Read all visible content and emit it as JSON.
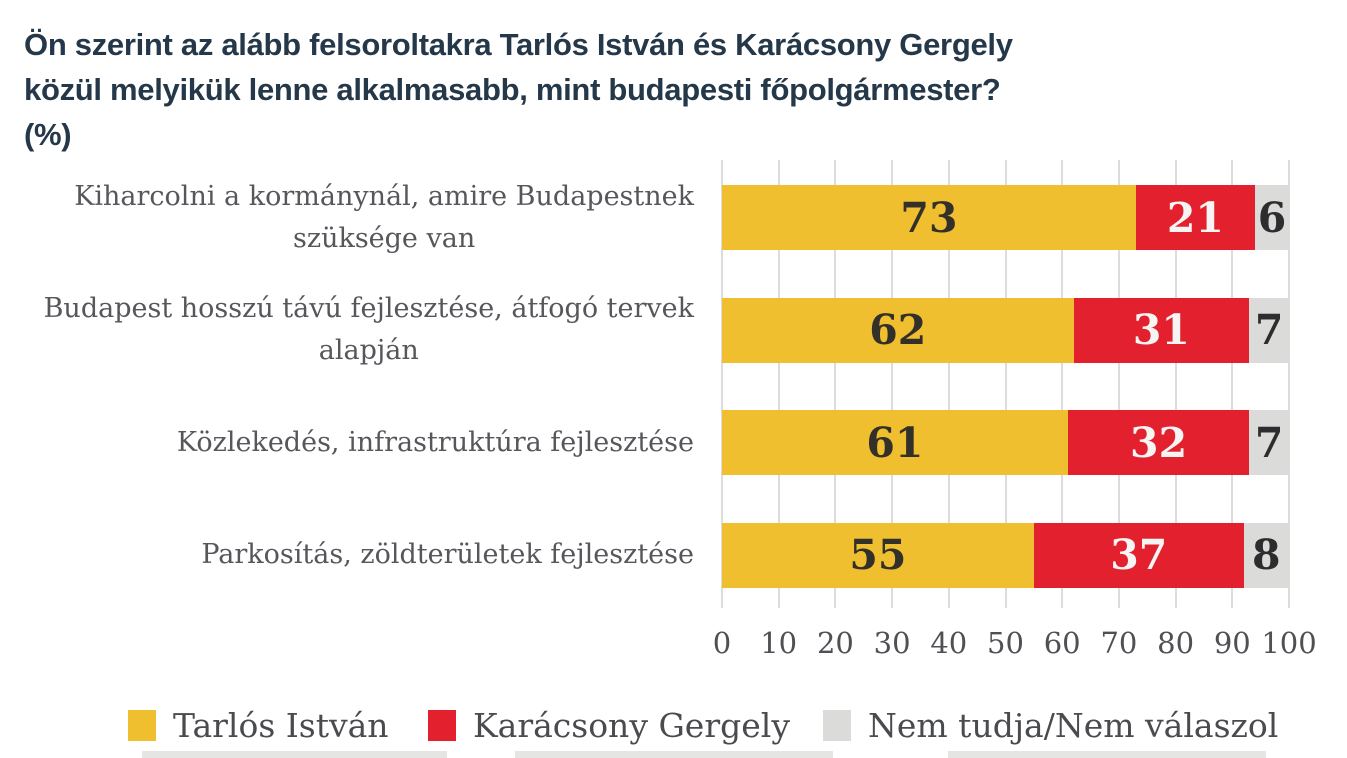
{
  "title": {
    "lines": [
      "Ön szerint az alább felsoroltakra Tarlós István és Karácsony Gergely",
      "közül melyikük lenne alkalmasabb, mint budapesti főpolgármester?",
      "(%)"
    ],
    "full": "Ön szerint az alább felsoroltakra Tarlós István és Karácsony Gergely közül melyikük lenne alkalmasabb, mint budapesti főpolgármester? (%)"
  },
  "colors": {
    "background": "#FFFFFF",
    "title_text": "#253849",
    "label_text": "#56575B",
    "axis_text": "#4F5054",
    "gridline": "#DCDCDC",
    "tarlos_yellow": "#EFBF2F",
    "karacsony_red": "#E2202E",
    "nem_tudja_gray": "#DBDBD9",
    "value_dark": "#33302A",
    "value_light": "#F7F4F4"
  },
  "chart_data": {
    "type": "bar",
    "orientation": "horizontal",
    "stacked": true,
    "grid": true,
    "legend_position": "bottom",
    "title": "Ön szerint az alább felsoroltakra Tarlós István és Karácsony Gergely közül melyikük lenne alkalmasabb, mint budapesti főpolgármester? (%)",
    "categories": [
      "Kiharcolni a kormánynál, amire Budapestnek szüksége van",
      "Budapest hosszú távú fejlesztése, átfogó tervek alapján",
      "Közlekedés, infrastruktúra fejlesztése",
      "Parkosítás, zöldterületek fejlesztése"
    ],
    "category_lines": [
      [
        "Kiharcolni a kormánynál, amire Budapestnek",
        "szüksége van"
      ],
      [
        "Budapest hosszú távú fejlesztése, átfogó tervek",
        "alapján"
      ],
      [
        "Közlekedés, infrastruktúra fejlesztése"
      ],
      [
        "Parkosítás, zöldterületek fejlesztése"
      ]
    ],
    "series": [
      {
        "name": "Tarlós István",
        "color": "#EFBF2F",
        "value_text_color": "#33302A",
        "values": [
          73,
          62,
          61,
          55
        ]
      },
      {
        "name": "Karácsony Gergely",
        "color": "#E2202E",
        "value_text_color": "#F7F4F4",
        "values": [
          21,
          31,
          32,
          37
        ]
      },
      {
        "name": "Nem tudja/Nem válaszol",
        "color": "#DBDBD9",
        "value_text_color": "#2D2D2F",
        "values": [
          6,
          7,
          7,
          8
        ]
      }
    ],
    "xlim": [
      0,
      100
    ],
    "x_ticks": [
      0,
      10,
      20,
      30,
      40,
      50,
      60,
      70,
      80,
      90,
      100
    ]
  },
  "legend": {
    "items": [
      {
        "label": "Tarlós István",
        "color": "#EFBF2F"
      },
      {
        "label": "Karácsony Gergely",
        "color": "#E2202E"
      },
      {
        "label": "Nem tudja/Nem válaszol",
        "color": "#DBDBD9"
      }
    ]
  }
}
